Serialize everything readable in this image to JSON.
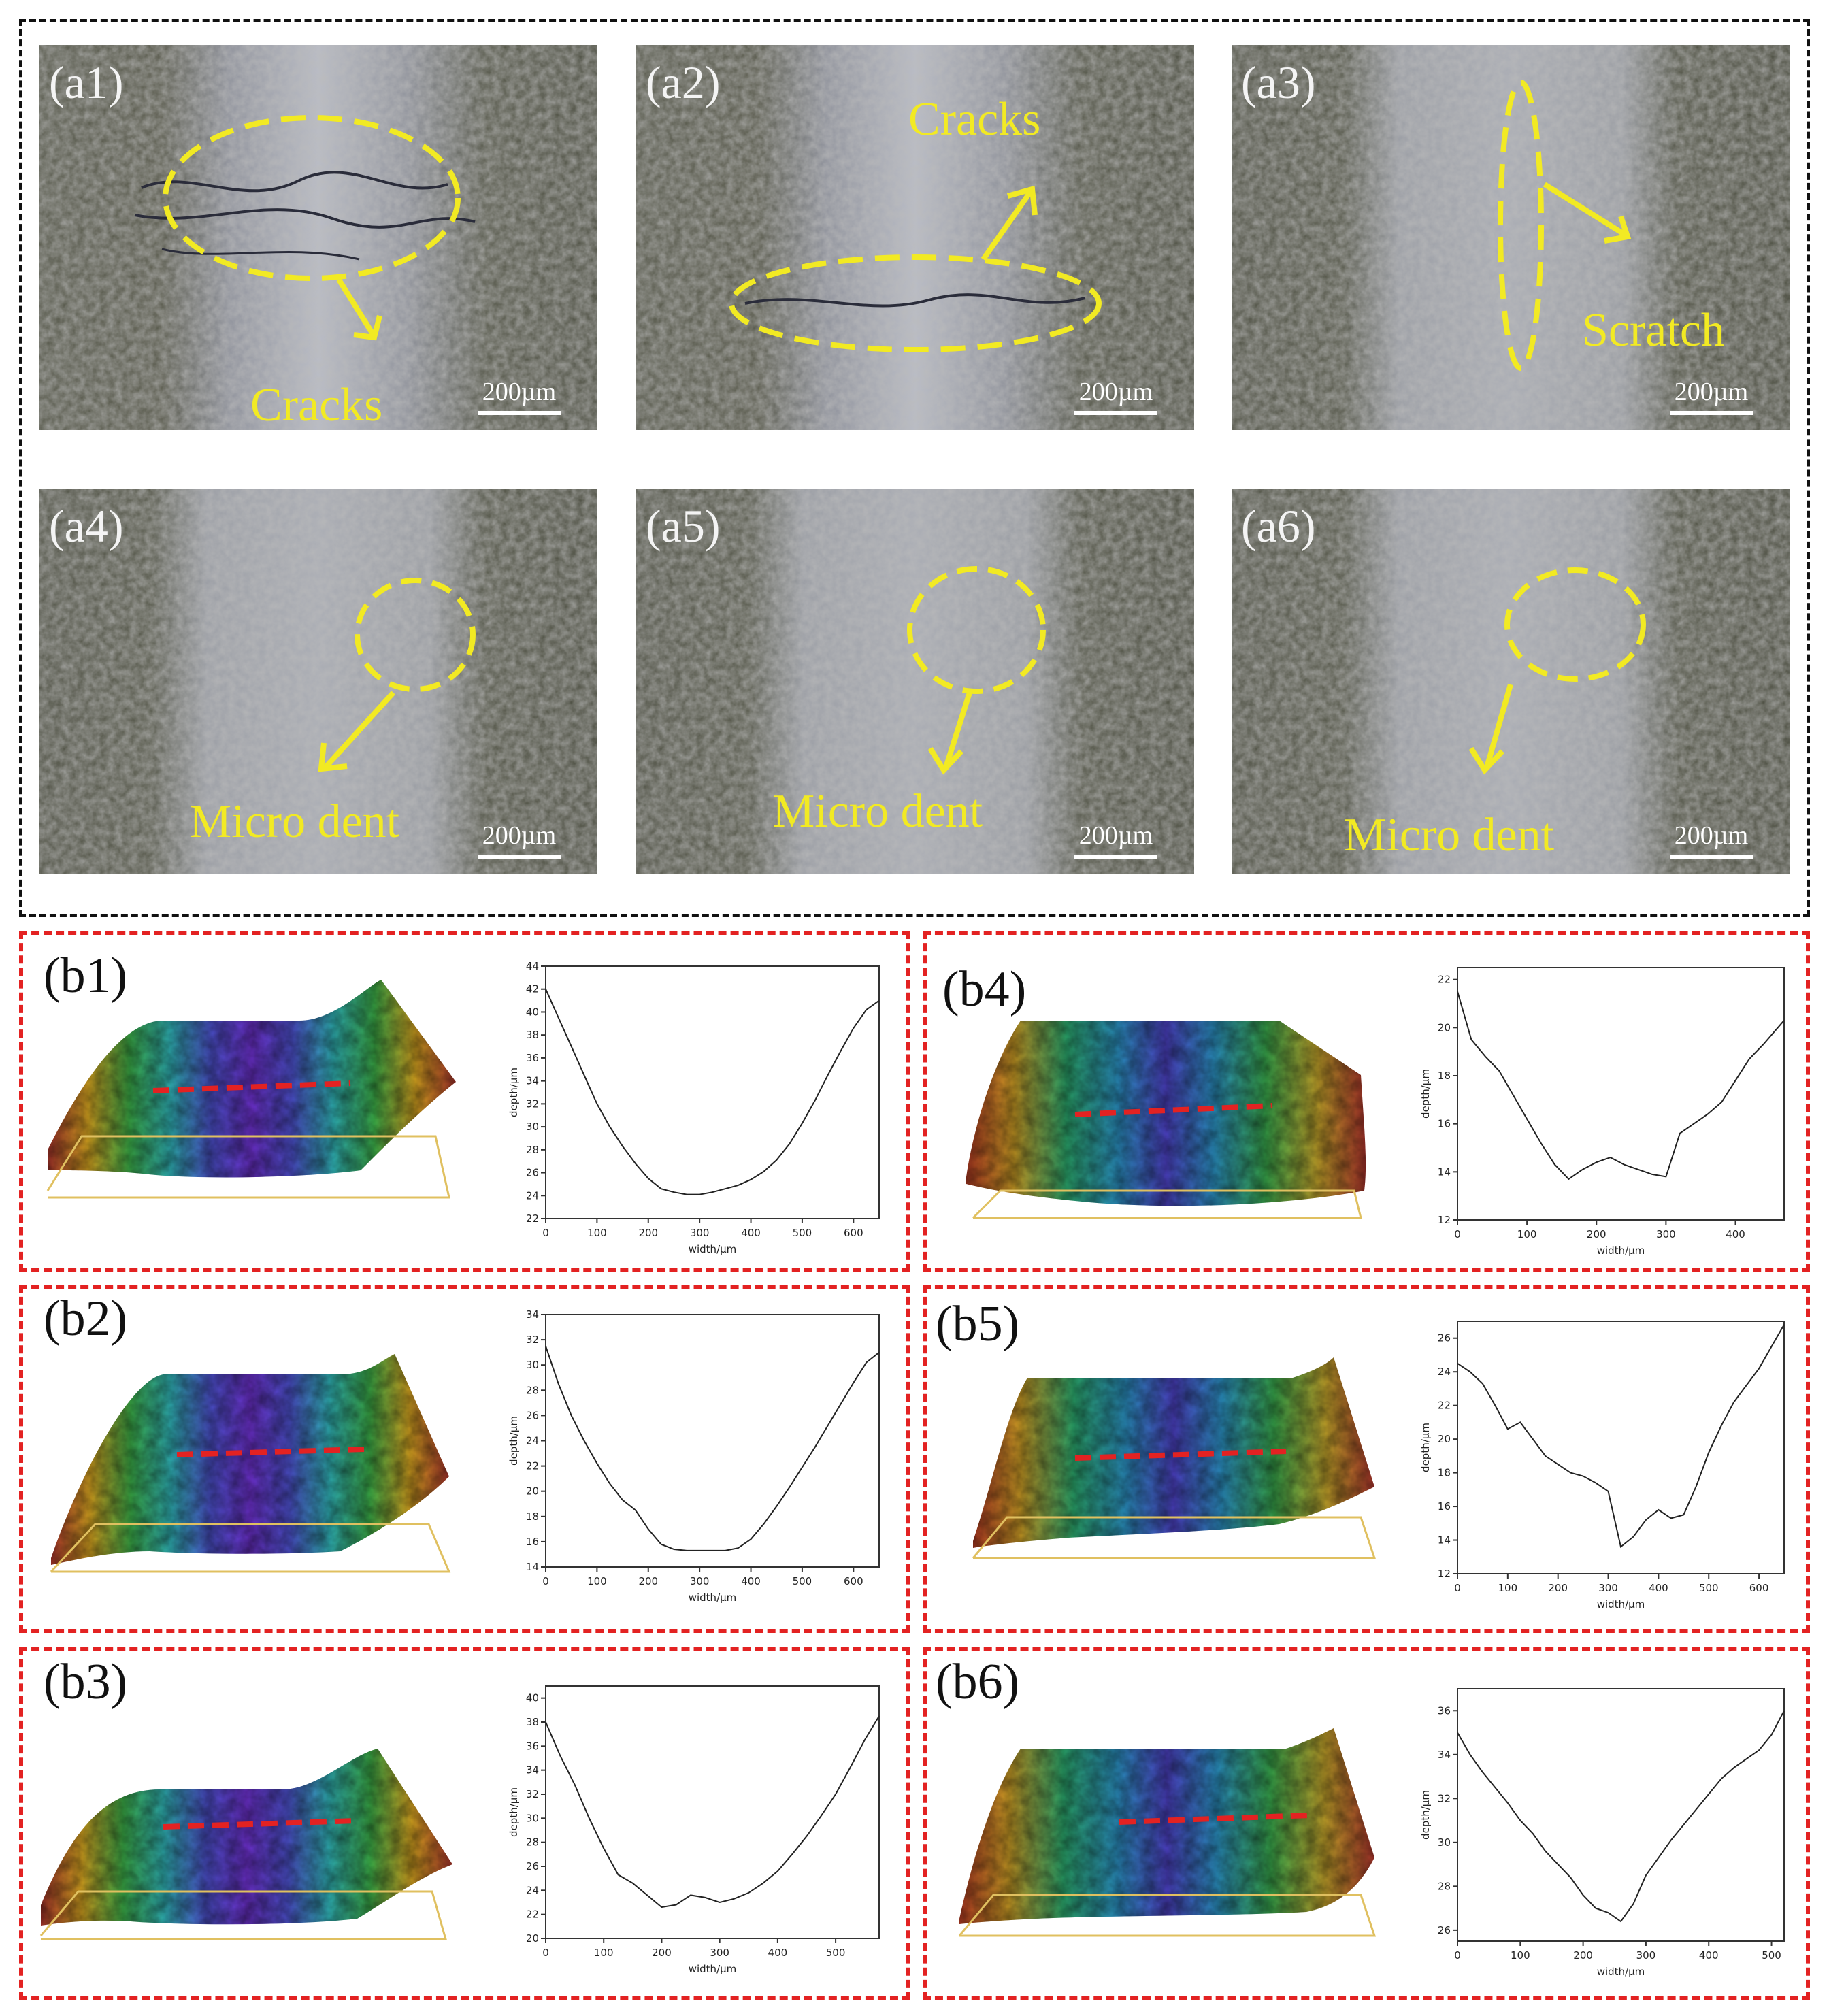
{
  "micrographs": [
    {
      "label": "(a1)",
      "scale": "200µm",
      "annotation": "Cracks"
    },
    {
      "label": "(a2)",
      "scale": "200µm",
      "annotation": "Cracks"
    },
    {
      "label": "(a3)",
      "scale": "200µm",
      "annotation": "Scratch"
    },
    {
      "label": "(a4)",
      "scale": "200µm",
      "annotation": "Micro dent"
    },
    {
      "label": "(a5)",
      "scale": "200µm",
      "annotation": "Micro dent"
    },
    {
      "label": "(a6)",
      "scale": "200µm",
      "annotation": "Micro dent"
    }
  ],
  "profiles": [
    {
      "label": "(b1)"
    },
    {
      "label": "(b2)"
    },
    {
      "label": "(b3)"
    },
    {
      "label": "(b4)"
    },
    {
      "label": "(b5)"
    },
    {
      "label": "(b6)"
    }
  ],
  "colors": {
    "annotation": "#f2ea23",
    "profile_line": "#e32222",
    "frame_red": "#e32222",
    "frame_black": "#111111"
  },
  "chart_data": [
    {
      "id": "b1",
      "type": "line",
      "xlabel": "width/µm",
      "ylabel": "depth/µm",
      "xlim": [
        0,
        650
      ],
      "ylim": [
        22,
        44
      ],
      "xticks": [
        0,
        100,
        200,
        300,
        400,
        500,
        600
      ],
      "yticks": [
        22,
        24,
        26,
        28,
        30,
        32,
        34,
        36,
        38,
        40,
        42,
        44
      ],
      "x": [
        0,
        25,
        50,
        75,
        100,
        125,
        150,
        175,
        200,
        225,
        250,
        275,
        300,
        325,
        350,
        375,
        400,
        425,
        450,
        475,
        500,
        525,
        550,
        575,
        600,
        625,
        650
      ],
      "y": [
        42,
        39.5,
        37,
        34.5,
        32,
        30,
        28.3,
        26.8,
        25.5,
        24.6,
        24.3,
        24.1,
        24.1,
        24.3,
        24.6,
        24.9,
        25.4,
        26.1,
        27.1,
        28.5,
        30.3,
        32.3,
        34.5,
        36.6,
        38.6,
        40.2,
        41
      ]
    },
    {
      "id": "b2",
      "type": "line",
      "xlabel": "width/µm",
      "ylabel": "depth/µm",
      "xlim": [
        0,
        650
      ],
      "ylim": [
        14,
        34
      ],
      "xticks": [
        0,
        100,
        200,
        300,
        400,
        500,
        600
      ],
      "yticks": [
        14,
        16,
        18,
        20,
        22,
        24,
        26,
        28,
        30,
        32,
        34
      ],
      "x": [
        0,
        25,
        50,
        75,
        100,
        125,
        150,
        175,
        200,
        225,
        250,
        275,
        300,
        325,
        350,
        375,
        400,
        425,
        450,
        475,
        500,
        525,
        550,
        575,
        600,
        625,
        650
      ],
      "y": [
        31.5,
        28.5,
        26,
        24,
        22.2,
        20.6,
        19.3,
        18.5,
        17,
        15.8,
        15.4,
        15.3,
        15.3,
        15.3,
        15.3,
        15.5,
        16.2,
        17.4,
        18.8,
        20.3,
        21.9,
        23.5,
        25.2,
        26.9,
        28.6,
        30.2,
        31
      ]
    },
    {
      "id": "b3",
      "type": "line",
      "xlabel": "width/µm",
      "ylabel": "depth/µm",
      "xlim": [
        0,
        575
      ],
      "ylim": [
        20,
        41
      ],
      "xticks": [
        0,
        100,
        200,
        300,
        400,
        500
      ],
      "yticks": [
        20,
        22,
        24,
        26,
        28,
        30,
        32,
        34,
        36,
        38,
        40
      ],
      "x": [
        0,
        25,
        50,
        75,
        100,
        125,
        150,
        175,
        200,
        225,
        250,
        275,
        300,
        325,
        350,
        375,
        400,
        425,
        450,
        475,
        500,
        525,
        550,
        575
      ],
      "y": [
        38,
        35.2,
        32.8,
        30,
        27.5,
        25.3,
        24.6,
        23.6,
        22.6,
        22.8,
        23.6,
        23.4,
        23,
        23.3,
        23.8,
        24.6,
        25.6,
        27,
        28.5,
        30.2,
        32,
        34.2,
        36.5,
        38.5
      ]
    },
    {
      "id": "b4",
      "type": "line",
      "xlabel": "width/µm",
      "ylabel": "depth/µm",
      "xlim": [
        0,
        470
      ],
      "ylim": [
        12,
        22.5
      ],
      "xticks": [
        0,
        100,
        200,
        300,
        400
      ],
      "yticks": [
        12,
        14,
        16,
        18,
        20,
        22
      ],
      "x": [
        0,
        20,
        40,
        60,
        80,
        100,
        120,
        140,
        160,
        180,
        200,
        220,
        240,
        260,
        280,
        300,
        320,
        340,
        360,
        380,
        400,
        420,
        440,
        470
      ],
      "y": [
        21.5,
        19.5,
        18.8,
        18.2,
        17.2,
        16.2,
        15.2,
        14.3,
        13.7,
        14.1,
        14.4,
        14.6,
        14.3,
        14.1,
        13.9,
        13.8,
        15.6,
        16,
        16.4,
        16.9,
        17.8,
        18.7,
        19.3,
        20.3
      ]
    },
    {
      "id": "b5",
      "type": "line",
      "xlabel": "width/µm",
      "ylabel": "depth/µm",
      "xlim": [
        0,
        650
      ],
      "ylim": [
        12,
        27
      ],
      "xticks": [
        0,
        100,
        200,
        300,
        400,
        500,
        600
      ],
      "yticks": [
        12,
        14,
        16,
        18,
        20,
        22,
        24,
        26
      ],
      "x": [
        0,
        25,
        50,
        75,
        100,
        125,
        150,
        175,
        200,
        225,
        250,
        275,
        300,
        325,
        350,
        375,
        400,
        425,
        450,
        475,
        500,
        525,
        550,
        575,
        600,
        625,
        650
      ],
      "y": [
        24.5,
        24,
        23.3,
        22,
        20.6,
        21,
        20,
        19,
        18.5,
        18,
        17.8,
        17.4,
        16.9,
        13.6,
        14.2,
        15.2,
        15.8,
        15.3,
        15.5,
        17.2,
        19.2,
        20.8,
        22.2,
        23.2,
        24.2,
        25.5,
        26.8
      ]
    },
    {
      "id": "b6",
      "type": "line",
      "xlabel": "width/µm",
      "ylabel": "depth/µm",
      "xlim": [
        0,
        520
      ],
      "ylim": [
        25.5,
        37
      ],
      "xticks": [
        0,
        100,
        200,
        300,
        400,
        500
      ],
      "yticks": [
        26,
        28,
        30,
        32,
        34,
        36
      ],
      "x": [
        0,
        20,
        40,
        60,
        80,
        100,
        120,
        140,
        160,
        180,
        200,
        220,
        240,
        260,
        280,
        300,
        320,
        340,
        360,
        380,
        400,
        420,
        440,
        460,
        480,
        500,
        520
      ],
      "y": [
        35,
        34,
        33.2,
        32.5,
        31.8,
        31,
        30.4,
        29.6,
        29,
        28.4,
        27.6,
        27,
        26.8,
        26.4,
        27.2,
        28.5,
        29.3,
        30.1,
        30.8,
        31.5,
        32.2,
        32.9,
        33.4,
        33.8,
        34.2,
        34.9,
        36
      ]
    }
  ]
}
